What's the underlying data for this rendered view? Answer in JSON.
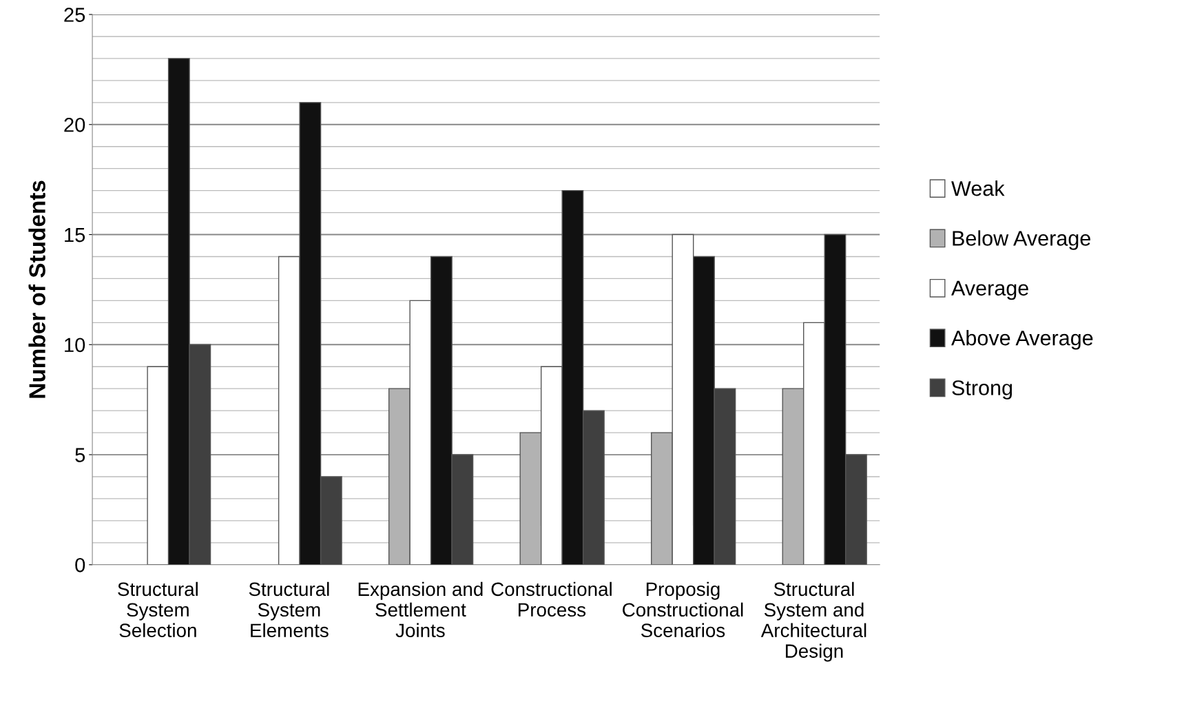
{
  "chart_data": {
    "type": "bar",
    "ylabel": "Number of Students",
    "categories": [
      "Structural System Selection",
      "Structural System Elements",
      "Expansion and Settlement Joints",
      "Constructional Process",
      "Proposig Constructional Scenarios",
      "Structural System and Architectural Design"
    ],
    "series": [
      {
        "name": "Weak",
        "color": "#ffffff",
        "values": [
          0,
          0,
          0,
          0,
          0,
          0
        ]
      },
      {
        "name": "Below Average",
        "color": "#b2b2b2",
        "values": [
          0,
          0,
          8,
          6,
          6,
          8
        ]
      },
      {
        "name": "Average",
        "color": "#ffffff",
        "values": [
          9,
          14,
          12,
          9,
          15,
          11
        ]
      },
      {
        "name": "Above Average",
        "color": "#111111",
        "values": [
          23,
          21,
          14,
          17,
          14,
          15
        ]
      },
      {
        "name": "Strong",
        "color": "#404040",
        "values": [
          10,
          4,
          5,
          7,
          8,
          5
        ]
      }
    ],
    "ylim": [
      0,
      25
    ],
    "yticks": [
      0,
      5,
      10,
      15,
      20,
      25
    ],
    "grid": "y",
    "legend": "right"
  }
}
